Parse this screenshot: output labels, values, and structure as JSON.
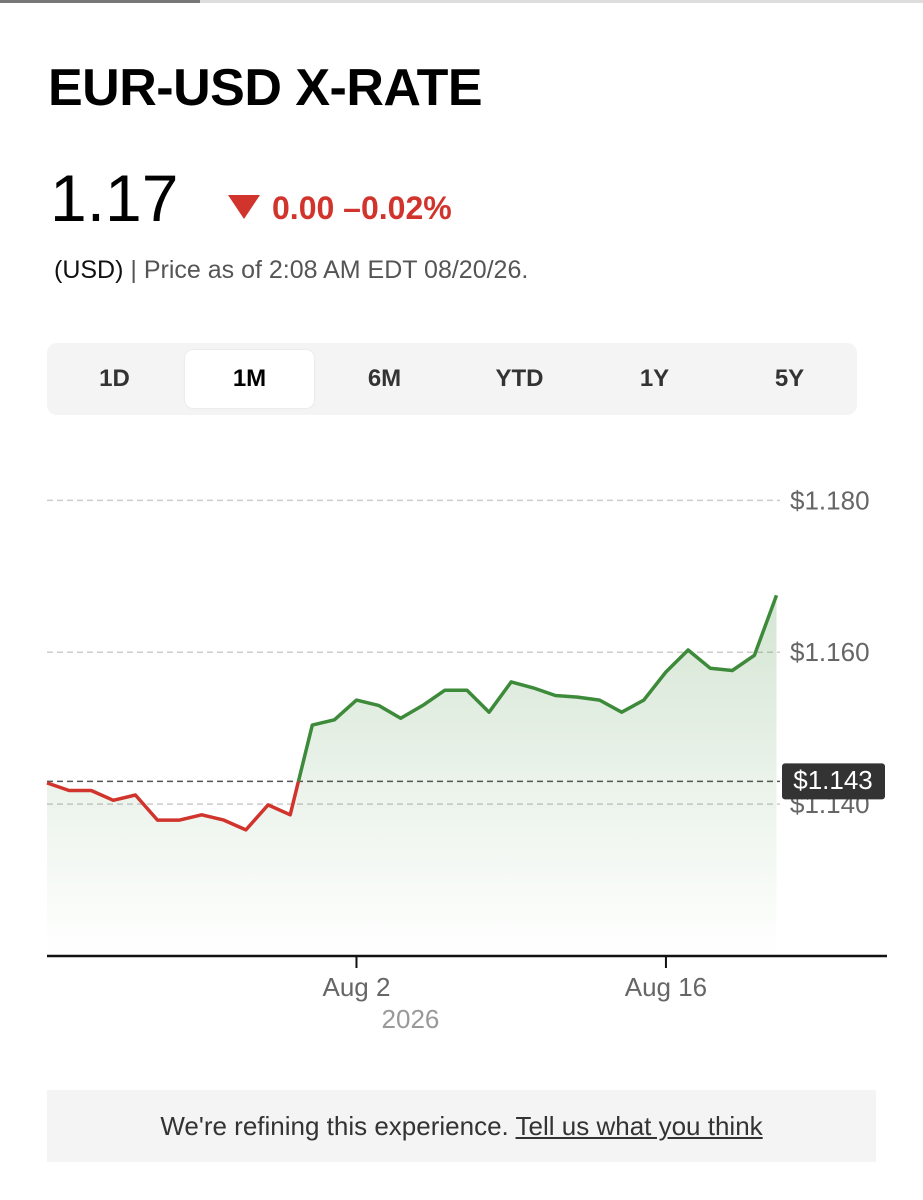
{
  "header": {
    "title": "EUR-USD X-RATE"
  },
  "quote": {
    "price": "1.17",
    "change": "0.00",
    "change_percent": "–0.02%",
    "currency": "(USD)",
    "timestamp": "| Price as of 2:08 AM EDT 08/20/26."
  },
  "tabs": {
    "items": [
      "1D",
      "1M",
      "6M",
      "YTD",
      "1Y",
      "5Y"
    ],
    "active": 1
  },
  "chart_data": {
    "type": "line",
    "x": [
      "2026-07-19",
      "2026-07-20",
      "2026-07-21",
      "2026-07-22",
      "2026-07-23",
      "2026-07-24",
      "2026-07-25",
      "2026-07-26",
      "2026-07-27",
      "2026-07-28",
      "2026-07-29",
      "2026-07-30",
      "2026-07-31",
      "2026-08-01",
      "2026-08-02",
      "2026-08-03",
      "2026-08-04",
      "2026-08-05",
      "2026-08-06",
      "2026-08-07",
      "2026-08-08",
      "2026-08-09",
      "2026-08-10",
      "2026-08-11",
      "2026-08-12",
      "2026-08-13",
      "2026-08-14",
      "2026-08-15",
      "2026-08-16",
      "2026-08-17",
      "2026-08-18",
      "2026-08-19",
      "2026-08-20",
      "2026-08-21"
    ],
    "values": [
      1.1428,
      1.1418,
      1.1418,
      1.1405,
      1.1412,
      1.1379,
      1.1379,
      1.1386,
      1.1379,
      1.1366,
      1.1399,
      1.1386,
      1.1504,
      1.1511,
      1.1537,
      1.153,
      1.1513,
      1.153,
      1.155,
      1.155,
      1.1521,
      1.1561,
      1.1553,
      1.1543,
      1.1541,
      1.1537,
      1.1521,
      1.1537,
      1.1574,
      1.1603,
      1.1579,
      1.1576,
      1.1596,
      1.1675
    ],
    "xlim": [
      "2026-07-19",
      "2026-08-26"
    ],
    "xticks": [
      {
        "value": "2026-08-02",
        "label": "Aug 2"
      },
      {
        "value": "2026-08-16",
        "label": "Aug 16"
      }
    ],
    "xlabel": "2026",
    "ylim": [
      1.12,
      1.184
    ],
    "yticks": [
      {
        "value": 1.14,
        "label": "$1.140"
      },
      {
        "value": 1.16,
        "label": "$1.160"
      },
      {
        "value": 1.18,
        "label": "$1.180"
      }
    ],
    "reference": {
      "value": 1.143,
      "label": "$1.143"
    },
    "up_color": "#3d8a3a",
    "down_color": "#d0342c",
    "grid": true
  },
  "feedback": {
    "text": "We're refining this experience.",
    "link": "Tell us what you think"
  }
}
